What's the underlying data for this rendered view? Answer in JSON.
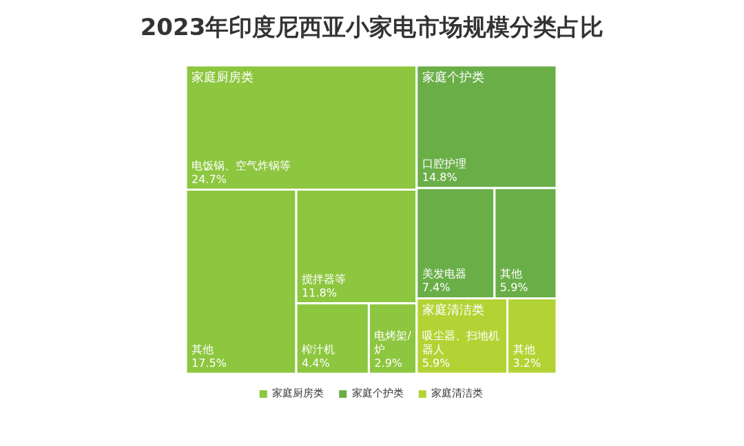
{
  "chart_data": {
    "type": "other",
    "title": "2023年印度尼西亚小家电市场规模分类占比",
    "categories": [
      "电饭锅、空气炸锅等",
      "其他",
      "搅拌器等",
      "榨汁机",
      "电烤架/炉",
      "口腔护理",
      "美发电器",
      "其他",
      "吸尘器、扫地机器人",
      "其他"
    ],
    "series": [
      {
        "name": "家庭厨房类",
        "color": "#8dc63f",
        "values": [
          24.7,
          17.5,
          11.8,
          4.4,
          2.9,
          null,
          null,
          null,
          null,
          null
        ],
        "value_labels": [
          "24.7%",
          "17.5%",
          "11.8%",
          "4.4%",
          "2.9%",
          null,
          null,
          null,
          null,
          null
        ]
      },
      {
        "name": "家庭个护类",
        "color": "#6aae48",
        "values": [
          null,
          null,
          null,
          null,
          null,
          14.8,
          7.4,
          5.9,
          null,
          null
        ],
        "value_labels": [
          null,
          null,
          null,
          null,
          null,
          "14.8%",
          "7.4%",
          "5.9%",
          null,
          null
        ]
      },
      {
        "name": "家庭清洁类",
        "color": "#b3d335",
        "values": [
          null,
          null,
          null,
          null,
          null,
          null,
          null,
          null,
          5.9,
          3.2
        ],
        "value_labels": [
          null,
          null,
          null,
          null,
          null,
          null,
          null,
          null,
          "5.9%",
          "3.2%"
        ]
      }
    ],
    "legend": "bottom"
  }
}
